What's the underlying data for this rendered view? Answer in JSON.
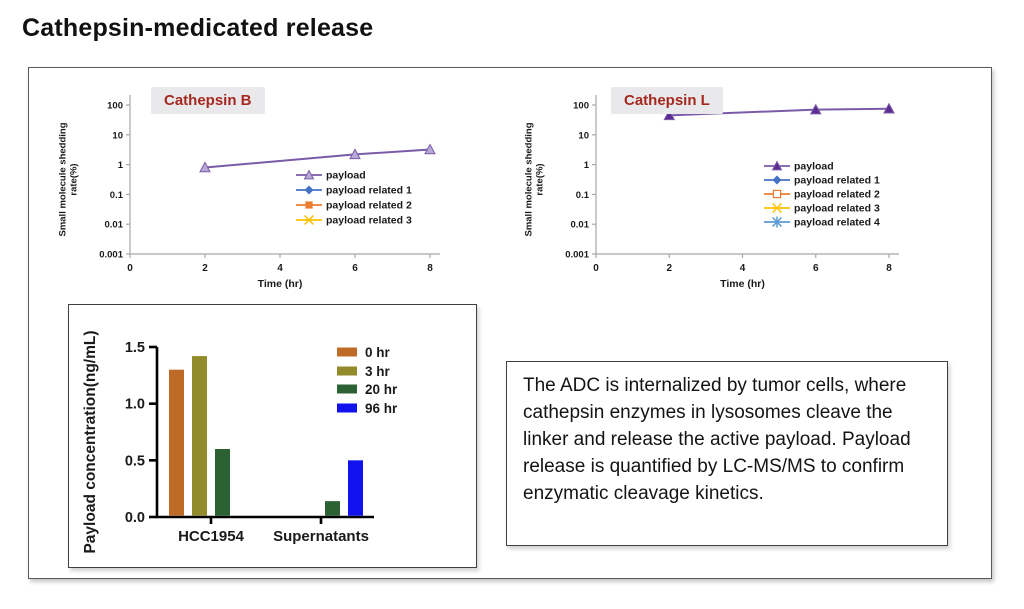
{
  "page_title": "Cathepsin-medicated release",
  "note_text": "The ADC is internalized by tumor cells, where cathepsin enzymes in lysosomes cleave the linker and release the active payload. Payload release is quantified by LC-MS/MS to confirm enzymatic cleavage kinetics.",
  "colors": {
    "chart_title_text": "#a5281f",
    "chart_title_bg": "#e9e9eb",
    "line_axis": "#a8a8a8",
    "payload_line": "#7a5ba8"
  },
  "chart_data": [
    {
      "id": "cathepsin-b",
      "type": "line",
      "title": "Cathepsin B",
      "xlabel": "Time (hr)",
      "ylabel_line1": "Small molecule shedding",
      "ylabel_line2": "rate(%)",
      "yscale": "log",
      "ylim": [
        0.001,
        100
      ],
      "yticks": [
        "100",
        "10",
        "1",
        "0.1",
        "0.01",
        "0.001"
      ],
      "xlim": [
        0,
        8
      ],
      "xticks": [
        "0",
        "2",
        "4",
        "6",
        "8"
      ],
      "x": [
        2,
        6,
        8
      ],
      "legend_position": "right-middle",
      "grid": false,
      "series": [
        {
          "name": "payload",
          "values": [
            0.8,
            2.2,
            3.2
          ],
          "color": "#7a5ba8",
          "marker": "triangle-open",
          "marker_fill": "#b9a9d6"
        },
        {
          "name": "payload related 1",
          "values": [],
          "color": "#4472c4",
          "marker": "diamond"
        },
        {
          "name": "payload related 2",
          "values": [],
          "color": "#ed7d31",
          "marker": "square"
        },
        {
          "name": "payload related 3",
          "values": [],
          "color": "#ffc000",
          "marker": "x"
        }
      ]
    },
    {
      "id": "cathepsin-l",
      "type": "line",
      "title": "Cathepsin L",
      "xlabel": "Time (hr)",
      "ylabel_line1": "Small molecule shedding",
      "ylabel_line2": "rate(%)",
      "yscale": "log",
      "ylim": [
        0.001,
        100
      ],
      "yticks": [
        "100",
        "10",
        "1",
        "0.1",
        "0.01",
        "0.001"
      ],
      "xlim": [
        0,
        8
      ],
      "xticks": [
        "0",
        "2",
        "4",
        "6",
        "8"
      ],
      "x": [
        2,
        6,
        8
      ],
      "legend_position": "right-middle",
      "grid": false,
      "series": [
        {
          "name": "payload",
          "values": [
            45,
            70,
            75
          ],
          "color": "#7a5ba8",
          "marker": "triangle",
          "marker_fill": "#5c2d91"
        },
        {
          "name": "payload related 1",
          "values": [],
          "color": "#4472c4",
          "marker": "diamond"
        },
        {
          "name": "payload related 2",
          "values": [],
          "color": "#ed7d31",
          "marker": "square-open"
        },
        {
          "name": "payload related 3",
          "values": [],
          "color": "#ffc000",
          "marker": "x"
        },
        {
          "name": "payload related 4",
          "values": [],
          "color": "#5b9bd5",
          "marker": "asterisk"
        }
      ]
    },
    {
      "id": "payload-concentration",
      "type": "bar",
      "title": "",
      "ylabel": "Payload concentration(ng/mL)",
      "categories": [
        "HCC1954",
        "Supernatants"
      ],
      "ylim": [
        0,
        1.5
      ],
      "yticks": [
        "0.0",
        "0.5",
        "1.0",
        "1.5"
      ],
      "legend_position": "top-right",
      "grid": false,
      "series": [
        {
          "name": "0 hr",
          "color": "#bf6b28",
          "values": [
            1.3,
            0
          ]
        },
        {
          "name": "3 hr",
          "color": "#938a2b",
          "values": [
            1.42,
            0
          ]
        },
        {
          "name": "20 hr",
          "color": "#2c6134",
          "values": [
            0.6,
            0.14
          ]
        },
        {
          "name": "96 hr",
          "color": "#1212ee",
          "values": [
            0,
            0.5
          ]
        }
      ]
    }
  ]
}
